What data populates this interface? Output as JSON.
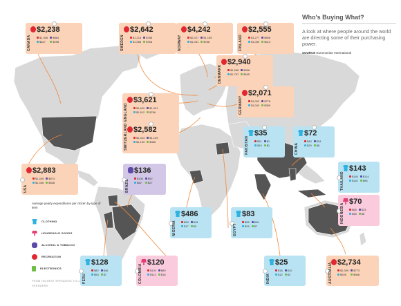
{
  "header": {
    "title": "Who's Buying What?",
    "subtitle": "A look at where people around the world are directing some of their purchasing power.",
    "source_label": "SOURCE",
    "source_value": "Euromonitor International"
  },
  "legend": {
    "title": "Average yearly expenditures per citizen by type of item",
    "items": [
      {
        "label": "CLOTHING",
        "color": "#2fb2df",
        "icon": "shirt-icon"
      },
      {
        "label": "HOUSEHOLD GOODS",
        "color": "#e43e73",
        "icon": "lamp-icon"
      },
      {
        "label": "ALCOHOL & TOBACCO",
        "color": "#5d4aa8",
        "icon": "bottle-icon"
      },
      {
        "label": "RECREATION",
        "color": "#e1272f",
        "icon": "guitar-icon"
      },
      {
        "label": "ELECTRONICS",
        "color": "#6fbe44",
        "icon": "phone-icon"
      }
    ],
    "ranking": "FROM HIGHEST SPENDERS TO LOWEST SPENDERS"
  },
  "colors": {
    "orange": "#fbd3b8",
    "blue": "#b9e3f2",
    "purple": "#d2c7e6",
    "pink": "#f9cbdc",
    "land": "#d9d9d9",
    "highlight": "#555555",
    "route": "#f0883a"
  },
  "countries": [
    {
      "country": "CANADA",
      "total": "$2,238",
      "cells": [
        "$1,306",
        "$864",
        "$827",
        "$298"
      ],
      "category": "recreation"
    },
    {
      "country": "SWEDEN",
      "total": "$2,642",
      "cells": [
        "$1,213",
        "$788",
        "$1,066",
        "$766"
      ],
      "category": "recreation"
    },
    {
      "country": "NORWAY",
      "total": "$4,242",
      "cells": [
        "$2,027",
        "$1,155",
        "$1,051",
        "$788"
      ],
      "category": "recreation"
    },
    {
      "country": "FINLAND",
      "total": "$2,555",
      "cells": [
        "$1,277",
        "$896",
        "$1,069",
        "$413"
      ],
      "category": "recreation"
    },
    {
      "country": "DENMARK",
      "total": "$2,940",
      "cells": [
        "$1,588",
        "$958",
        "$1,787",
        "$545"
      ],
      "category": "recreation"
    },
    {
      "country": "ENGLAND",
      "total": "$3,621",
      "cells": [
        "$1,649",
        "$1,031",
        "$1,512",
        "$766"
      ],
      "category": "recreation"
    },
    {
      "country": "GERMANY",
      "total": "$2,071",
      "cells": [
        "$1,002",
        "$778",
        "$1,042",
        "$365"
      ],
      "category": "recreation"
    },
    {
      "country": "SWITZERLAND",
      "total": "$2,582",
      "cells": [
        "$1,423",
        "$1,139",
        "$1,159",
        "$385"
      ],
      "category": "recreation"
    },
    {
      "country": "USA",
      "total": "$2,883",
      "cells": [
        "$1,405",
        "$873",
        "$1,406",
        "$538"
      ],
      "category": "recreation"
    },
    {
      "country": "BRAZIL",
      "total": "$136",
      "cells": [
        "$136",
        "$92",
        "$82",
        "$27"
      ],
      "category": "alcohol"
    },
    {
      "country": "PAKISTAN",
      "total": "$35",
      "cells": [
        "$31",
        "$1",
        "$15",
        "$1"
      ],
      "category": "clothing"
    },
    {
      "country": "CHINA",
      "total": "$72",
      "cells": [
        "$43",
        "$34",
        "$29",
        "$8"
      ],
      "category": "clothing"
    },
    {
      "country": "THAILAND",
      "total": "$143",
      "cells": [
        "$140",
        "$114",
        "$116",
        "$96"
      ],
      "category": "clothing"
    },
    {
      "country": "INDONESIA",
      "total": "$70",
      "cells": [
        "$68",
        "$23",
        "$48",
        "$6"
      ],
      "category": "household"
    },
    {
      "country": "NIGERIA",
      "total": "$486",
      "cells": [
        "$28",
        "$18",
        "$17",
        "$3"
      ],
      "category": "clothing"
    },
    {
      "country": "EGYPT",
      "total": "$83",
      "cells": [
        "$55",
        "$28",
        "$26",
        "$7"
      ],
      "category": "clothing"
    },
    {
      "country": "PERU",
      "total": "$128",
      "cells": [
        "$82",
        "$46",
        "$53",
        "$7"
      ],
      "category": "clothing"
    },
    {
      "country": "COLOMBIA",
      "total": "$120",
      "cells": [
        "$120",
        "$89",
        "$113",
        "$18"
      ],
      "category": "household"
    },
    {
      "country": "INDIA",
      "total": "$25",
      "cells": [
        "$18",
        "$10",
        "$12",
        "$3"
      ],
      "category": "clothing"
    },
    {
      "country": "AUSTRALIA",
      "total": "$2,734",
      "cells": [
        "$1,309",
        "$773",
        "$926",
        "$568"
      ],
      "category": "recreation"
    }
  ]
}
